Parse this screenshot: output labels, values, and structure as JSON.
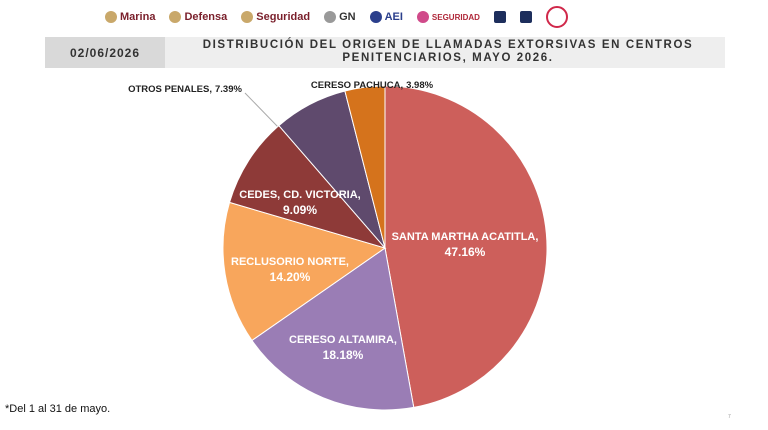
{
  "header": {
    "logos": [
      "Marina",
      "Defensa",
      "Seguridad",
      "GN",
      "AEI",
      "SEGURIDAD"
    ]
  },
  "date": "02/06/2026",
  "chart_data": {
    "type": "pie",
    "title": "DISTRIBUCIÓN DEL ORIGEN DE LLAMADAS EXTORSIVAS EN CENTROS PENITENCIARIOS, MAYO 2026.",
    "categories": [
      "SANTA MARTHA ACATITLA,",
      "CERESO ALTAMIRA,",
      "RECLUSORIO NORTE,",
      "CEDES, CD. VICTORIA,",
      "OTROS PENALES,",
      "CERESO PACHUCA,"
    ],
    "values": [
      47.16,
      18.18,
      14.2,
      9.09,
      7.39,
      3.98
    ],
    "value_labels": [
      "47.16%",
      "18.18%",
      "14.20%",
      "9.09%",
      "7.39%",
      "3.98%"
    ],
    "colors": [
      "#cd5f5b",
      "#9a7db5",
      "#f8a65c",
      "#8e3a38",
      "#5f4a6d",
      "#d5731c"
    ]
  },
  "footnote": "*Del 1 al 31 de mayo.",
  "page_number": "7"
}
